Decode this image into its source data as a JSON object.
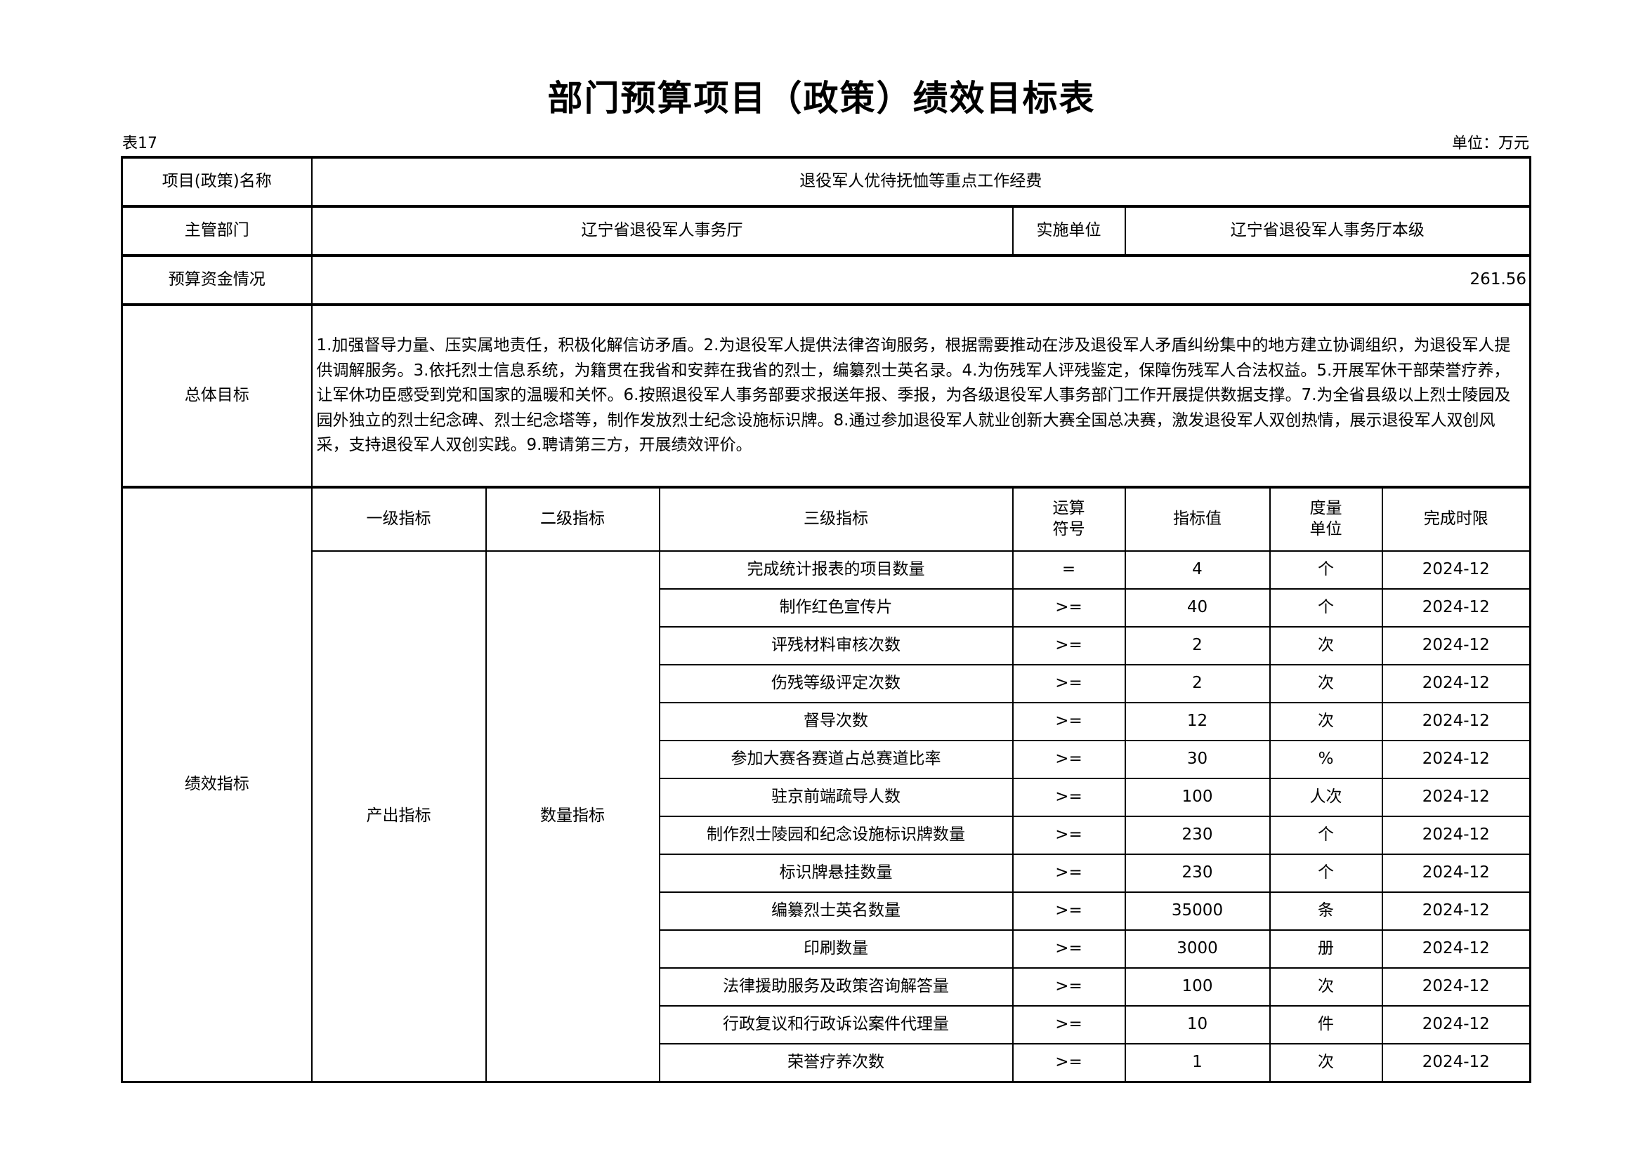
{
  "title": "部门预算项目（政策）绩效目标表",
  "table_no": "表17",
  "unit": "单位：万元",
  "project_name_label": "项目(政策)名称",
  "project_name": "退役军人优待抚恤等重点工作经费",
  "dept_label": "主管部门",
  "dept": "辽宁省退役军人事务厅",
  "impl_label": "实施单位",
  "impl": "辽宁省退役军人事务厅本级",
  "budget_label": "预算资金情况",
  "budget": "261.56",
  "goal_label": "总体目标",
  "goal": "1.加强督导力量、压实属地责任，积极化解信访矛盾。2.为退役军人提供法律咨询服务，根据需要推动在涉及退役军人矛盾纠纷集中的地方建立协调组织，为退役军人提供调解服务。3.依托烈士信息系统，为籍贯在我省和安葬在我省的烈士，编纂烈士英名录。4.为伤残军人评残鉴定，保障伤残军人合法权益。5.开展军休干部荣誉疗养，让军休功臣感受到党和国家的温暖和关怀。6.按照退役军人事务部要求报送年报、季报，为各级退役军人事务部门工作开展提供数据支撑。7.为全省县级以上烈士陵园及园外独立的烈士纪念碑、烈士纪念塔等，制作发放烈士纪念设施标识牌。8.通过参加退役军人就业创新大赛全国总决赛，激发退役军人双创热情，展示退役军人双创风采，支持退役军人双创实践。9.聘请第三方，开展绩效评价。",
  "perf_label": "绩效指标",
  "headers": [
    "一级指标",
    "二级指标",
    "三级指标",
    "运算\n符号",
    "指标值",
    "度量\n单位",
    "完成时限"
  ],
  "level1": "产出指标",
  "level2": "数量指标",
  "rows": [
    [
      "完成统计报表的项目数量",
      "=",
      "4",
      "个",
      "2024-12"
    ],
    [
      "制作红色宣传片",
      ">=",
      "40",
      "个",
      "2024-12"
    ],
    [
      "评残材料审核次数",
      ">=",
      "2",
      "次",
      "2024-12"
    ],
    [
      "伤残等级评定次数",
      ">=",
      "2",
      "次",
      "2024-12"
    ],
    [
      "督导次数",
      ">=",
      "12",
      "次",
      "2024-12"
    ],
    [
      "参加大赛各赛道占总赛道比率",
      ">=",
      "30",
      "%",
      "2024-12"
    ],
    [
      "驻京前端疏导人数",
      ">=",
      "100",
      "人次",
      "2024-12"
    ],
    [
      "制作烈士陵园和纪念设施标识牌数量",
      ">=",
      "230",
      "个",
      "2024-12"
    ],
    [
      "标识牌悬挂数量",
      ">=",
      "230",
      "个",
      "2024-12"
    ],
    [
      "编纂烈士英名数量",
      ">=",
      "35000",
      "条",
      "2024-12"
    ],
    [
      "印刷数量",
      ">=",
      "3000",
      "册",
      "2024-12"
    ],
    [
      "法律援助服务及政策咨询解答量",
      ">=",
      "100",
      "次",
      "2024-12"
    ],
    [
      "行政复议和行政诉讼案件代理量",
      ">=",
      "10",
      "件",
      "2024-12"
    ],
    [
      "荣誉疗养次数",
      ">=",
      "1",
      "次",
      "2024-12"
    ]
  ]
}
